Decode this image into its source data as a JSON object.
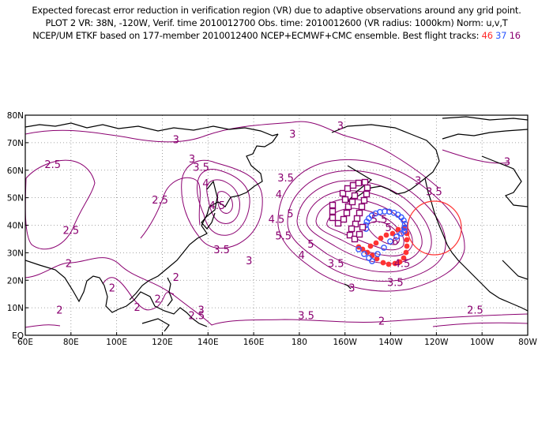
{
  "header": {
    "line1": "Expected forecast error reduction in verification region (VR) due to adaptive observations around any grid point.",
    "line2": "PLOT 2 VR: 38N, -120W, Verif. time 2010012700 Obs. time: 2010012600 (VR radius: 1000km) Norm: u,v,T",
    "line3_prefix": "NCEP/UM ETKF based on 177-member 2010012400 NCEP+ECMWF+CMC ensemble. Best flight tracks:",
    "tracks": [
      "46",
      "37",
      "16"
    ]
  },
  "map": {
    "lon_labels": [
      "60E",
      "80E",
      "100E",
      "120E",
      "140E",
      "160E",
      "180",
      "160W",
      "140W",
      "120W",
      "100W",
      "80W"
    ],
    "lat_labels": [
      "EQ",
      "10N",
      "20N",
      "30N",
      "40N",
      "50N",
      "60N",
      "70N",
      "80N"
    ],
    "lon_range": [
      60,
      280
    ],
    "lat_range": [
      0,
      80
    ],
    "grid": "dotted",
    "contour_color": "#8a0070",
    "contour_labels": [
      {
        "text": "3",
        "lon": 126,
        "lat": 71
      },
      {
        "text": "3",
        "lon": 198,
        "lat": 76
      },
      {
        "text": "3",
        "lon": 177,
        "lat": 73
      },
      {
        "text": "3",
        "lon": 271,
        "lat": 63
      },
      {
        "text": "2.5",
        "lon": 72,
        "lat": 62
      },
      {
        "text": "2.5",
        "lon": 80,
        "lat": 38
      },
      {
        "text": "2.5",
        "lon": 119,
        "lat": 49
      },
      {
        "text": "3",
        "lon": 133,
        "lat": 64
      },
      {
        "text": "3.5",
        "lon": 137,
        "lat": 61
      },
      {
        "text": "4",
        "lon": 139,
        "lat": 55
      },
      {
        "text": "4.5",
        "lon": 144,
        "lat": 47
      },
      {
        "text": "3.5",
        "lon": 146,
        "lat": 31
      },
      {
        "text": "3",
        "lon": 158,
        "lat": 27
      },
      {
        "text": "3.5",
        "lon": 174,
        "lat": 57
      },
      {
        "text": "4",
        "lon": 171,
        "lat": 51
      },
      {
        "text": "4.5",
        "lon": 170,
        "lat": 42
      },
      {
        "text": "5",
        "lon": 176,
        "lat": 44
      },
      {
        "text": "5.5",
        "lon": 173,
        "lat": 36
      },
      {
        "text": "5.5",
        "lon": 215,
        "lat": 42
      },
      {
        "text": "5",
        "lon": 219,
        "lat": 39
      },
      {
        "text": "6",
        "lon": 222,
        "lat": 34
      },
      {
        "text": "3.5",
        "lon": 239,
        "lat": 52
      },
      {
        "text": "3",
        "lon": 232,
        "lat": 56
      },
      {
        "text": "5",
        "lon": 185,
        "lat": 33
      },
      {
        "text": "4",
        "lon": 181,
        "lat": 29
      },
      {
        "text": "3.5",
        "lon": 196,
        "lat": 26
      },
      {
        "text": "3",
        "lon": 203,
        "lat": 17
      },
      {
        "text": "4.5",
        "lon": 225,
        "lat": 26
      },
      {
        "text": "3.5",
        "lon": 222,
        "lat": 19
      },
      {
        "text": "2",
        "lon": 79,
        "lat": 26
      },
      {
        "text": "2",
        "lon": 75,
        "lat": 9
      },
      {
        "text": "2",
        "lon": 98,
        "lat": 17
      },
      {
        "text": "2",
        "lon": 109,
        "lat": 10
      },
      {
        "text": "2",
        "lon": 118,
        "lat": 13
      },
      {
        "text": "2",
        "lon": 126,
        "lat": 21
      },
      {
        "text": "2.5",
        "lon": 135,
        "lat": 7
      },
      {
        "text": "3",
        "lon": 137,
        "lat": 9
      },
      {
        "text": "3.5",
        "lon": 183,
        "lat": 7
      },
      {
        "text": "2",
        "lon": 216,
        "lat": 5
      },
      {
        "text": "2.5",
        "lon": 257,
        "lat": 9
      }
    ]
  },
  "tracks": {
    "red": {
      "color": "#ff3333"
    },
    "blue": {
      "color": "#3355ff"
    },
    "purple": {
      "color": "#8a0070"
    }
  },
  "verification_region": {
    "lat": 38,
    "lon": -120,
    "radius_km": 1000,
    "color": "#ff3333"
  }
}
